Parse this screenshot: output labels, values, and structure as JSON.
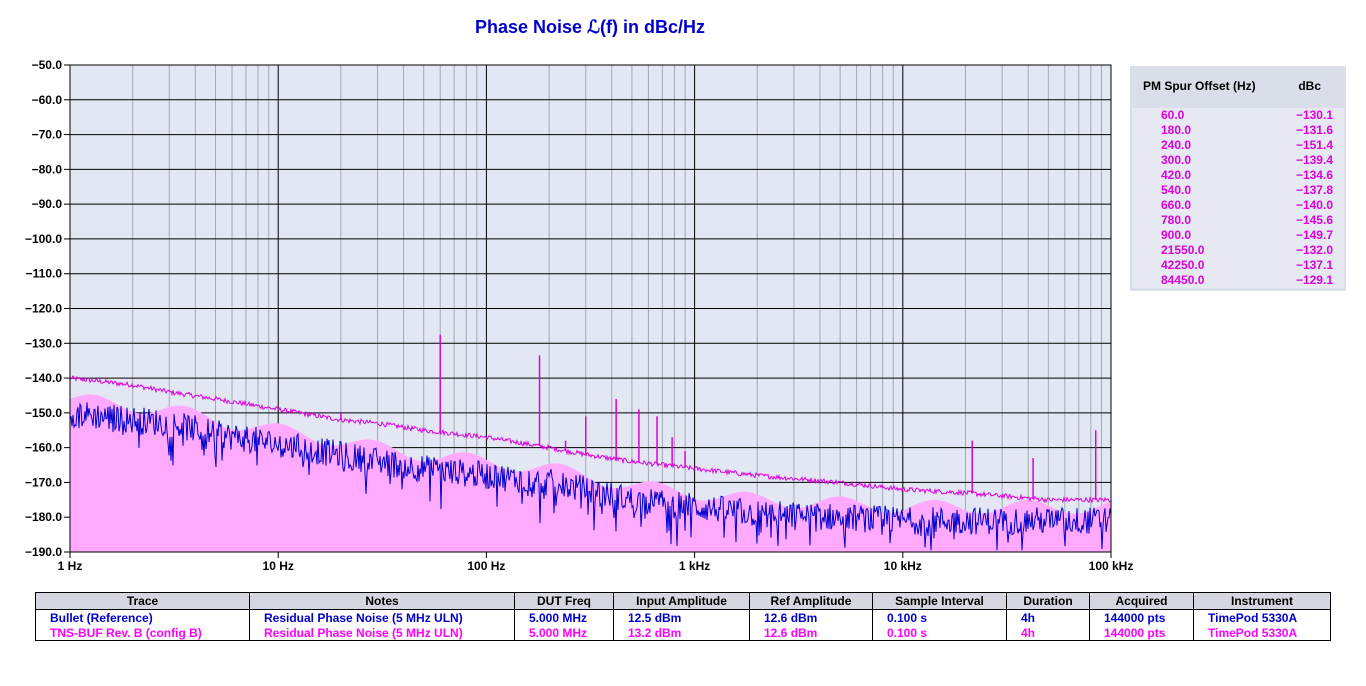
{
  "title": "Phase Noise ℒ(f) in dBc/Hz",
  "chart_data": {
    "type": "line",
    "title": "Phase Noise ℒ(f) in dBc/Hz",
    "xscale": "log",
    "xlim": [
      1,
      100000
    ],
    "ylim": [
      -190,
      -50
    ],
    "y_ticks": [
      -50,
      -60,
      -70,
      -80,
      -90,
      -100,
      -110,
      -120,
      -130,
      -140,
      -150,
      -160,
      -170,
      -180,
      -190
    ],
    "y_tick_labels": [
      "−50.0",
      "−60.0",
      "−70.0",
      "−80.0",
      "−90.0",
      "−100.0",
      "−110.0",
      "−120.0",
      "−130.0",
      "−140.0",
      "−150.0",
      "−160.0",
      "−170.0",
      "−180.0",
      "−190.0"
    ],
    "x_ticks": [
      1,
      10,
      100,
      1000,
      10000,
      100000
    ],
    "x_tick_labels": [
      "1 Hz",
      "10 Hz",
      "100 Hz",
      "1 kHz",
      "10 kHz",
      "100 kHz"
    ],
    "grid": true,
    "background": "#e3e7f3",
    "series": [
      {
        "name": "Bullet (Reference)",
        "color": "#0000cc",
        "x": [
          1,
          2,
          3,
          5,
          10,
          20,
          30,
          50,
          100,
          200,
          300,
          500,
          1000,
          2000,
          5000,
          10000,
          20000,
          50000,
          100000
        ],
        "y": [
          -150,
          -152,
          -153,
          -156,
          -159,
          -162,
          -164,
          -166,
          -168,
          -170,
          -172,
          -175,
          -177,
          -179,
          -180,
          -181,
          -181,
          -181,
          -181
        ]
      },
      {
        "name": "TNS-BUF Rev. B (config B)",
        "color": "#dd00dd",
        "x": [
          1,
          2,
          3,
          5,
          10,
          20,
          30,
          50,
          100,
          200,
          300,
          500,
          1000,
          2000,
          5000,
          10000,
          20000,
          50000,
          100000
        ],
        "y": [
          -140,
          -142,
          -144,
          -146,
          -149,
          -152,
          -153,
          -155,
          -157,
          -160,
          -162,
          -164,
          -166,
          -168,
          -170,
          -172,
          -173,
          -175,
          -175
        ]
      }
    ],
    "spurs": [
      {
        "x": 20,
        "y": -150
      },
      {
        "x": 60,
        "y": -127.5
      },
      {
        "x": 180,
        "y": -133.5
      },
      {
        "x": 240,
        "y": -158
      },
      {
        "x": 300,
        "y": -151
      },
      {
        "x": 420,
        "y": -146
      },
      {
        "x": 540,
        "y": -149
      },
      {
        "x": 660,
        "y": -151
      },
      {
        "x": 780,
        "y": -157
      },
      {
        "x": 900,
        "y": -161
      },
      {
        "x": 21550,
        "y": -158
      },
      {
        "x": 42250,
        "y": -163
      },
      {
        "x": 84450,
        "y": -155
      }
    ]
  },
  "spur_table": {
    "headers": [
      "PM Spur Offset (Hz)",
      "dBc"
    ],
    "rows": [
      [
        "60.0",
        "−130.1"
      ],
      [
        "180.0",
        "−131.6"
      ],
      [
        "240.0",
        "−151.4"
      ],
      [
        "300.0",
        "−139.4"
      ],
      [
        "420.0",
        "−134.6"
      ],
      [
        "540.0",
        "−137.8"
      ],
      [
        "660.0",
        "−140.0"
      ],
      [
        "780.0",
        "−145.6"
      ],
      [
        "900.0",
        "−149.7"
      ],
      [
        "21550.0",
        "−132.0"
      ],
      [
        "42250.0",
        "−137.1"
      ],
      [
        "84450.0",
        "−129.1"
      ]
    ]
  },
  "legend_table": {
    "headers": [
      "Trace",
      "Notes",
      "DUT Freq",
      "Input Amplitude",
      "Ref Amplitude",
      "Sample Interval",
      "Duration",
      "Acquired",
      "Instrument"
    ],
    "rows": [
      [
        "Bullet (Reference)",
        "Residual Phase Noise (5 MHz ULN)",
        "5.000 MHz",
        "12.5 dBm",
        "12.6 dBm",
        "0.100 s",
        "4h",
        "144000 pts",
        "TimePod 5330A"
      ],
      [
        "TNS-BUF Rev. B (config B)",
        "Residual Phase Noise (5 MHz ULN)",
        "5.000 MHz",
        "13.2 dBm",
        "12.6 dBm",
        "0.100 s",
        "4h",
        "144000 pts",
        "TimePod 5330A"
      ]
    ]
  }
}
